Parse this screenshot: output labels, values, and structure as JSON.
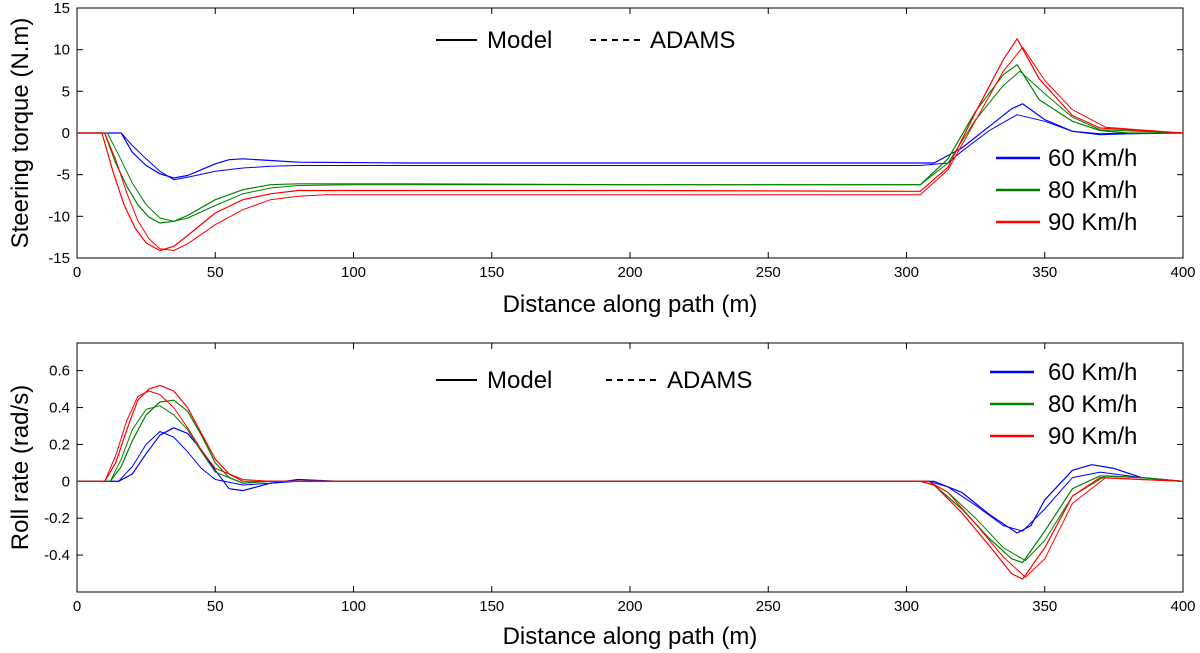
{
  "chart_data": [
    {
      "type": "line",
      "xlabel": "Distance along path (m)",
      "ylabel": "Steering torque (N.m)",
      "xlim": [
        0,
        400
      ],
      "ylim": [
        -15,
        15
      ],
      "xticks": [
        "0",
        "50",
        "100",
        "150",
        "200",
        "250",
        "300",
        "350",
        "400"
      ],
      "yticks": [
        "-15",
        "-10",
        "-5",
        "0",
        "5",
        "10",
        "15"
      ],
      "style_legend": [
        {
          "label": "Model",
          "dash": "solid"
        },
        {
          "label": "ADAMS",
          "dash": "dashed"
        }
      ],
      "legend": [
        "60 Km/h",
        "80 Km/h",
        "90 Km/h"
      ],
      "legend_position": "right",
      "grid": false,
      "series": [
        {
          "name": "60 Km/h",
          "model": "Model",
          "color": "#0000ff",
          "x": [
            0,
            16,
            20,
            25,
            30,
            35,
            40,
            45,
            50,
            55,
            60,
            70,
            80,
            120,
            200,
            300,
            310,
            320,
            330,
            338,
            342,
            350,
            360,
            370,
            380,
            400
          ],
          "y": [
            0,
            0,
            -2.3,
            -3.9,
            -4.9,
            -5.4,
            -5.1,
            -4.4,
            -3.7,
            -3.2,
            -3.1,
            -3.3,
            -3.5,
            -3.6,
            -3.6,
            -3.6,
            -3.6,
            -1.8,
            0.8,
            2.9,
            3.5,
            1.6,
            0.2,
            -0.2,
            -0.1,
            0
          ]
        },
        {
          "name": "60 Km/h",
          "model": "ADAMS",
          "color": "#0000ff",
          "x": [
            0,
            16,
            20,
            25,
            30,
            35,
            40,
            50,
            60,
            70,
            80,
            120,
            200,
            305,
            315,
            320,
            330,
            340,
            350,
            360,
            370,
            380,
            400
          ],
          "y": [
            0,
            0,
            -1.5,
            -3.1,
            -4.6,
            -5.6,
            -5.3,
            -4.6,
            -4.2,
            -4.0,
            -3.9,
            -3.9,
            -3.9,
            -3.9,
            -3.6,
            -2.2,
            0.3,
            2.2,
            1.4,
            0.2,
            -0.1,
            0,
            0
          ]
        },
        {
          "name": "80 Km/h",
          "model": "Model",
          "color": "#008000",
          "x": [
            0,
            10,
            14,
            18,
            22,
            26,
            30,
            35,
            40,
            50,
            60,
            70,
            80,
            120,
            200,
            300,
            305,
            315,
            325,
            335,
            340,
            348,
            360,
            370,
            380,
            400
          ],
          "y": [
            0,
            0,
            -3.6,
            -6.4,
            -8.6,
            -10.1,
            -10.8,
            -10.6,
            -9.9,
            -8.0,
            -6.8,
            -6.2,
            -6.1,
            -6.1,
            -6.2,
            -6.2,
            -6.2,
            -3.1,
            2.6,
            7.0,
            8.2,
            4.0,
            1.4,
            0.3,
            0,
            0
          ]
        },
        {
          "name": "80 Km/h",
          "model": "ADAMS",
          "color": "#008000",
          "x": [
            0,
            11,
            15,
            20,
            25,
            30,
            35,
            40,
            50,
            60,
            70,
            80,
            100,
            120,
            200,
            305,
            315,
            325,
            335,
            341,
            350,
            360,
            370,
            400
          ],
          "y": [
            0,
            0,
            -2.6,
            -6.0,
            -8.6,
            -10.2,
            -10.6,
            -10.2,
            -8.7,
            -7.3,
            -6.6,
            -6.3,
            -6.2,
            -6.2,
            -6.2,
            -6.2,
            -3.6,
            1.6,
            5.7,
            7.4,
            4.7,
            1.9,
            0.4,
            0
          ]
        },
        {
          "name": "90 Km/h",
          "model": "Model",
          "color": "#ff0000",
          "x": [
            0,
            9,
            13,
            17,
            21,
            25,
            30,
            35,
            40,
            50,
            60,
            70,
            80,
            90,
            120,
            200,
            300,
            305,
            315,
            325,
            335,
            340,
            348,
            360,
            370,
            400
          ],
          "y": [
            0,
            0,
            -4.6,
            -8.6,
            -11.4,
            -13.2,
            -14.1,
            -13.6,
            -12.3,
            -9.6,
            -8.0,
            -7.3,
            -6.9,
            -6.9,
            -6.9,
            -6.9,
            -7.0,
            -7.0,
            -4.1,
            2.5,
            8.8,
            11.3,
            6.5,
            2.1,
            0.6,
            0
          ]
        },
        {
          "name": "90 Km/h",
          "model": "ADAMS",
          "color": "#ff0000",
          "x": [
            0,
            10,
            14,
            18,
            22,
            26,
            30,
            35,
            40,
            50,
            60,
            70,
            80,
            90,
            120,
            200,
            305,
            315,
            325,
            335,
            342,
            350,
            360,
            372,
            400
          ],
          "y": [
            0,
            0,
            -3.2,
            -7.2,
            -10.5,
            -12.7,
            -13.9,
            -14.1,
            -13.3,
            -11.0,
            -9.2,
            -8.0,
            -7.6,
            -7.4,
            -7.4,
            -7.4,
            -7.4,
            -4.4,
            1.5,
            7.4,
            10.3,
            6.3,
            2.8,
            0.7,
            0
          ]
        }
      ]
    },
    {
      "type": "line",
      "xlabel": "Distance along path (m)",
      "ylabel": "Roll rate (rad/s)",
      "xlim": [
        0,
        400
      ],
      "ylim": [
        -0.6,
        0.75
      ],
      "xticks": [
        "0",
        "50",
        "100",
        "150",
        "200",
        "250",
        "300",
        "350",
        "400"
      ],
      "yticks": [
        "-0.4",
        "-0.2",
        "0",
        "0.2",
        "0.4",
        "0.6"
      ],
      "style_legend": [
        {
          "label": "Model",
          "dash": "solid"
        },
        {
          "label": "ADAMS",
          "dash": "dashed"
        }
      ],
      "legend": [
        "60 Km/h",
        "80 Km/h",
        "90 Km/h"
      ],
      "legend_position": "top-right",
      "grid": false,
      "series": [
        {
          "name": "60 Km/h",
          "model": "Model",
          "color": "#0000ff",
          "x": [
            0,
            15,
            20,
            25,
            30,
            35,
            40,
            45,
            50,
            55,
            60,
            65,
            70,
            80,
            95,
            120,
            200,
            305,
            310,
            320,
            330,
            340,
            345,
            350,
            360,
            367,
            375,
            385,
            400
          ],
          "y": [
            0,
            0,
            0.04,
            0.15,
            0.25,
            0.29,
            0.26,
            0.17,
            0.06,
            -0.04,
            -0.05,
            -0.03,
            -0.01,
            0.01,
            0,
            0,
            0,
            0,
            0,
            -0.06,
            -0.18,
            -0.28,
            -0.24,
            -0.1,
            0.06,
            0.09,
            0.07,
            0.02,
            0
          ]
        },
        {
          "name": "60 Km/h",
          "model": "ADAMS",
          "color": "#0000ff",
          "x": [
            0,
            15,
            20,
            25,
            30,
            35,
            40,
            45,
            50,
            60,
            70,
            80,
            120,
            200,
            308,
            315,
            325,
            335,
            342,
            350,
            360,
            370,
            385,
            400
          ],
          "y": [
            0,
            0,
            0.08,
            0.2,
            0.27,
            0.24,
            0.16,
            0.07,
            0.01,
            -0.02,
            -0.01,
            0,
            0,
            0,
            0,
            -0.03,
            -0.13,
            -0.24,
            -0.27,
            -0.15,
            0.02,
            0.05,
            0.02,
            0
          ]
        },
        {
          "name": "80 Km/h",
          "model": "Model",
          "color": "#008000",
          "x": [
            0,
            12,
            16,
            20,
            25,
            30,
            35,
            40,
            45,
            50,
            55,
            60,
            70,
            80,
            120,
            200,
            305,
            310,
            320,
            330,
            338,
            342,
            350,
            360,
            370,
            385,
            400
          ],
          "y": [
            0,
            0,
            0.08,
            0.22,
            0.36,
            0.43,
            0.44,
            0.38,
            0.25,
            0.1,
            0.02,
            -0.01,
            0,
            0,
            0,
            0,
            0,
            -0.02,
            -0.15,
            -0.31,
            -0.42,
            -0.44,
            -0.27,
            -0.04,
            0.03,
            0.02,
            0
          ]
        },
        {
          "name": "80 Km/h",
          "model": "ADAMS",
          "color": "#008000",
          "x": [
            0,
            12,
            16,
            20,
            25,
            30,
            35,
            40,
            45,
            50,
            60,
            70,
            120,
            200,
            308,
            315,
            325,
            335,
            343,
            350,
            360,
            372,
            385,
            400
          ],
          "y": [
            0,
            0,
            0.12,
            0.28,
            0.39,
            0.41,
            0.36,
            0.28,
            0.16,
            0.05,
            -0.01,
            0,
            0,
            0,
            0,
            -0.06,
            -0.2,
            -0.36,
            -0.43,
            -0.32,
            -0.08,
            0.03,
            0.02,
            0
          ]
        },
        {
          "name": "90 Km/h",
          "model": "Model",
          "color": "#ff0000",
          "x": [
            0,
            10,
            14,
            18,
            22,
            26,
            30,
            35,
            40,
            45,
            50,
            55,
            60,
            70,
            80,
            120,
            200,
            305,
            310,
            320,
            330,
            338,
            342,
            350,
            360,
            370,
            385,
            400
          ],
          "y": [
            0,
            0,
            0.1,
            0.28,
            0.44,
            0.5,
            0.52,
            0.49,
            0.4,
            0.26,
            0.12,
            0.04,
            0,
            0,
            0,
            0,
            0,
            0,
            -0.02,
            -0.17,
            -0.35,
            -0.5,
            -0.53,
            -0.36,
            -0.08,
            0.02,
            0.01,
            0
          ]
        },
        {
          "name": "90 Km/h",
          "model": "ADAMS",
          "color": "#ff0000",
          "x": [
            0,
            10,
            14,
            18,
            22,
            26,
            30,
            35,
            40,
            45,
            50,
            60,
            70,
            120,
            200,
            308,
            315,
            325,
            335,
            343,
            350,
            360,
            372,
            385,
            400
          ],
          "y": [
            0,
            0,
            0.14,
            0.33,
            0.46,
            0.49,
            0.47,
            0.4,
            0.29,
            0.17,
            0.07,
            0.01,
            0,
            0,
            0,
            0,
            -0.06,
            -0.23,
            -0.41,
            -0.52,
            -0.42,
            -0.12,
            0.02,
            0.01,
            0
          ]
        }
      ]
    }
  ]
}
